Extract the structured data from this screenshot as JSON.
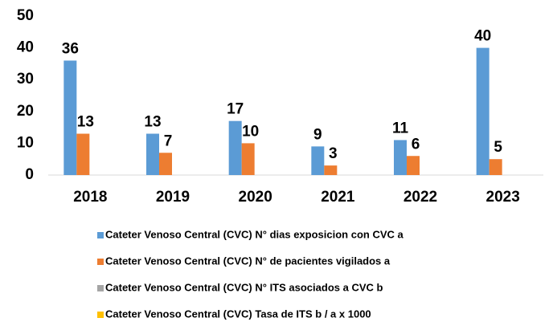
{
  "chart_data": {
    "type": "bar",
    "categories": [
      "2018",
      "2019",
      "2020",
      "2021",
      "2022",
      "2023"
    ],
    "series": [
      {
        "name": "Cateter Venoso  Central (CVC) N° dias exposicion con CVC a",
        "color": "#5b9bd5",
        "values": [
          36,
          13,
          17,
          9,
          11,
          40
        ]
      },
      {
        "name": "Cateter Venoso  Central (CVC) N° de pacientes vigilados a",
        "color": "#ed7d31",
        "values": [
          13,
          7,
          10,
          3,
          6,
          5
        ]
      },
      {
        "name": "Cateter Venoso  Central (CVC) N° ITS asociados a CVC b",
        "color": "#a5a5a5",
        "values": [
          null,
          null,
          null,
          null,
          null,
          null
        ]
      },
      {
        "name": "Cateter Venoso  Central (CVC) Tasa de ITS b / a x 1000",
        "color": "#ffc000",
        "values": [
          null,
          null,
          null,
          null,
          null,
          null
        ]
      }
    ],
    "ylim": [
      0,
      50
    ],
    "yticks": [
      0,
      10,
      20,
      30,
      40,
      50
    ],
    "grid": false,
    "legend": "bottom"
  }
}
